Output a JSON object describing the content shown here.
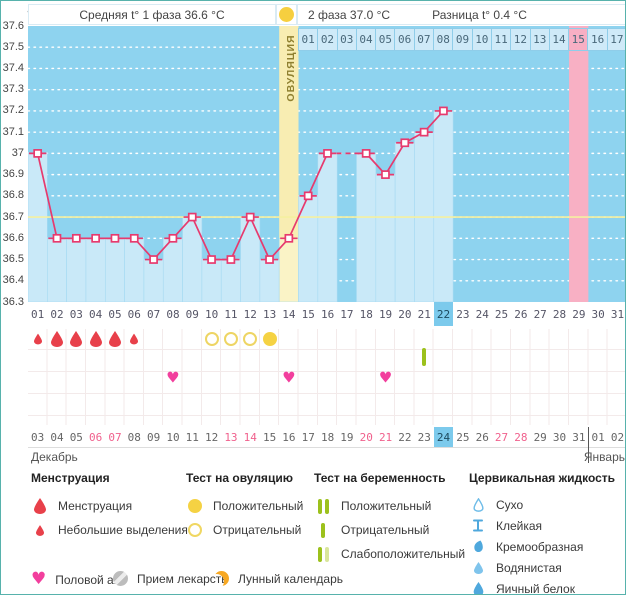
{
  "header": {
    "unit_label": "°C",
    "phase1_label": "Средняя t° 1 фаза 36.6 °C",
    "phase2_label": "2 фаза 37.0 °C",
    "diff_label": "Разница t° 0.4 °C"
  },
  "months": {
    "left": "Декабрь",
    "right": "Январь"
  },
  "chart_data": {
    "type": "line",
    "ylabel": "°C",
    "ylim": [
      36.3,
      37.6
    ],
    "yticks": [
      "37.6",
      "37.5",
      "37.4",
      "37.3",
      "37.2",
      "37.1",
      "37",
      "36.9",
      "36.8",
      "36.7",
      "36.6",
      "36.5",
      "36.4",
      "36.3"
    ],
    "cycle_days": [
      "01",
      "02",
      "03",
      "04",
      "05",
      "06",
      "07",
      "08",
      "09",
      "10",
      "11",
      "12",
      "13",
      "14",
      "15",
      "16",
      "17",
      "18",
      "19",
      "20",
      "21",
      "22",
      "23",
      "24",
      "25",
      "26",
      "27",
      "28",
      "29",
      "30",
      "31"
    ],
    "temperatures": [
      37.0,
      36.6,
      36.6,
      36.6,
      36.6,
      36.6,
      36.5,
      36.6,
      36.7,
      36.5,
      36.5,
      36.7,
      36.5,
      36.6,
      36.8,
      37.0,
      null,
      37.0,
      36.9,
      37.05,
      37.1,
      37.2,
      null,
      null,
      null,
      null,
      null,
      null,
      null,
      null,
      null
    ],
    "coverline": 36.7,
    "ovulation_day": 14,
    "ovulation_label": "ОВУЛЯЦИЯ",
    "expected_period_day": 29,
    "today_cycle_day": 22,
    "dpo_row": {
      "start_cycle_day": 15,
      "labels": [
        "01",
        "02",
        "03",
        "04",
        "05",
        "06",
        "07",
        "08",
        "09",
        "10",
        "11",
        "12",
        "13",
        "14",
        "15",
        "16",
        "17"
      ],
      "highlighted": "15"
    },
    "dates": [
      {
        "label": "03",
        "weekend": false,
        "today": false
      },
      {
        "label": "04",
        "weekend": false,
        "today": false
      },
      {
        "label": "05",
        "weekend": false,
        "today": false
      },
      {
        "label": "06",
        "weekend": true,
        "today": false
      },
      {
        "label": "07",
        "weekend": true,
        "today": false
      },
      {
        "label": "08",
        "weekend": false,
        "today": false
      },
      {
        "label": "09",
        "weekend": false,
        "today": false
      },
      {
        "label": "10",
        "weekend": false,
        "today": false
      },
      {
        "label": "11",
        "weekend": false,
        "today": false
      },
      {
        "label": "12",
        "weekend": false,
        "today": false
      },
      {
        "label": "13",
        "weekend": true,
        "today": false
      },
      {
        "label": "14",
        "weekend": true,
        "today": false
      },
      {
        "label": "15",
        "weekend": false,
        "today": false
      },
      {
        "label": "16",
        "weekend": false,
        "today": false
      },
      {
        "label": "17",
        "weekend": false,
        "today": false
      },
      {
        "label": "18",
        "weekend": false,
        "today": false
      },
      {
        "label": "19",
        "weekend": false,
        "today": false
      },
      {
        "label": "20",
        "weekend": true,
        "today": false
      },
      {
        "label": "21",
        "weekend": true,
        "today": false
      },
      {
        "label": "22",
        "weekend": false,
        "today": false
      },
      {
        "label": "23",
        "weekend": false,
        "today": false
      },
      {
        "label": "24",
        "weekend": false,
        "today": true
      },
      {
        "label": "25",
        "weekend": false,
        "today": false
      },
      {
        "label": "26",
        "weekend": false,
        "today": false
      },
      {
        "label": "27",
        "weekend": true,
        "today": false
      },
      {
        "label": "28",
        "weekend": true,
        "today": false
      },
      {
        "label": "29",
        "weekend": false,
        "today": false
      },
      {
        "label": "30",
        "weekend": false,
        "today": false
      },
      {
        "label": "31",
        "weekend": false,
        "today": false
      },
      {
        "label": "01",
        "weekend": false,
        "today": false
      },
      {
        "label": "02",
        "weekend": false,
        "today": false
      }
    ],
    "marks": {
      "menstruation": [
        {
          "day": 1,
          "size": "small"
        },
        {
          "day": 2,
          "size": "large"
        },
        {
          "day": 3,
          "size": "large"
        },
        {
          "day": 4,
          "size": "large"
        },
        {
          "day": 5,
          "size": "large"
        },
        {
          "day": 6,
          "size": "small"
        }
      ],
      "ovulation_tests": [
        {
          "day": 10,
          "result": "negative"
        },
        {
          "day": 11,
          "result": "negative"
        },
        {
          "day": 12,
          "result": "negative"
        },
        {
          "day": 13,
          "result": "positive"
        }
      ],
      "pregnancy_tests": [
        {
          "day": 21,
          "result": "negative"
        }
      ],
      "intercourse": [
        {
          "day": 8
        },
        {
          "day": 14
        },
        {
          "day": 19
        }
      ]
    }
  },
  "colors": {
    "chart_bg": "#8ed3ef",
    "column_fill": "#c9e9f8",
    "ovulation_band": "#f8edb2",
    "ovulation_band_fill": "#faf3c6",
    "expected_period": "#f8b0c4",
    "line": "#e73a6e",
    "coverline": "#f5f0a0",
    "today_highlight": "#7ccaec",
    "menstruation": "#e8404a",
    "ovulation_test": "#f5d243",
    "pregnancy_test": "#9cc11c",
    "intercourse": "#f23f9d",
    "cervical": "#4fa8dd",
    "moon": "#f7a823"
  },
  "legend": {
    "menstruation": {
      "title": "Менструация",
      "items": [
        {
          "label": "Менструация"
        },
        {
          "label": "Небольшие выделения"
        }
      ]
    },
    "ovulation_test": {
      "title": "Тест на овуляцию",
      "items": [
        {
          "label": "Положительный"
        },
        {
          "label": "Отрицательный"
        }
      ]
    },
    "pregnancy_test": {
      "title": "Тест на беременность",
      "items": [
        {
          "label": "Положительный"
        },
        {
          "label": "Отрицательный"
        },
        {
          "label": "Слабоположительный"
        }
      ]
    },
    "cervical_fluid": {
      "title": "Цервикальная жидкость",
      "items": [
        {
          "label": "Сухо"
        },
        {
          "label": "Клейкая"
        },
        {
          "label": "Кремообразная"
        },
        {
          "label": "Водянистая"
        },
        {
          "label": "Яичный белок"
        }
      ]
    },
    "intercourse_label": "Половой акт",
    "medication_label": "Прием лекарств",
    "lunar_label": "Лунный календарь"
  }
}
